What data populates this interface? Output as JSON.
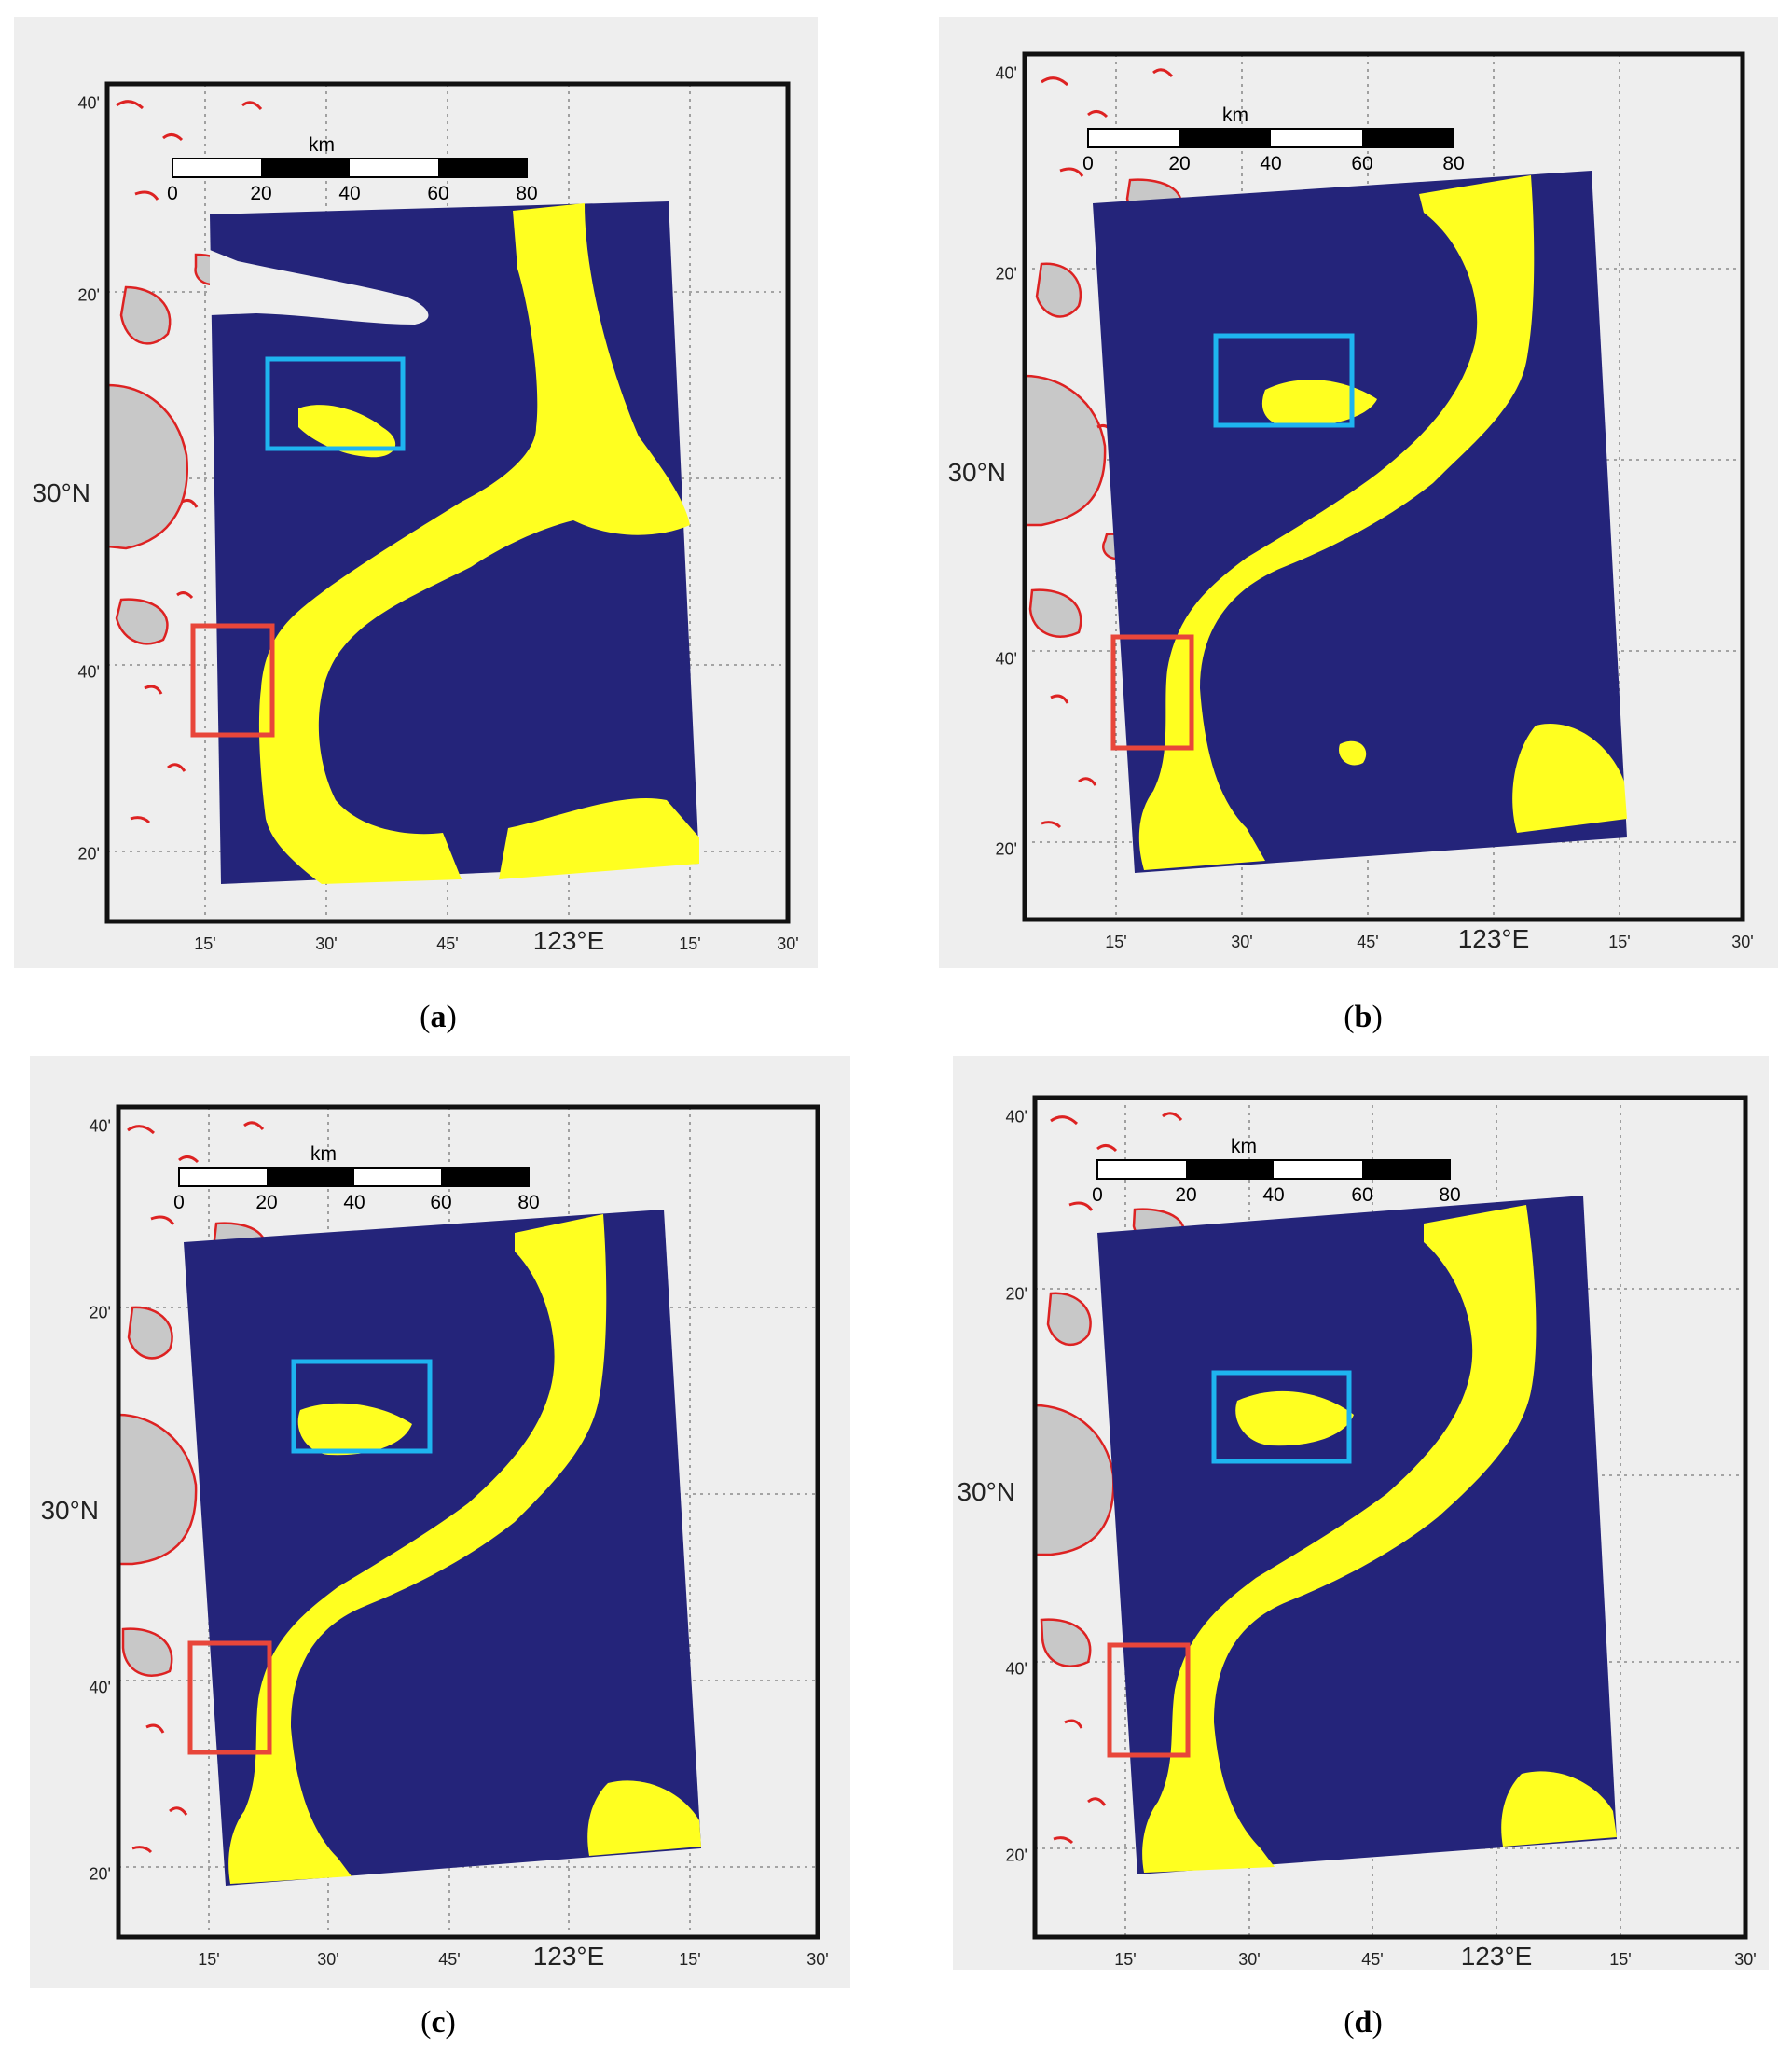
{
  "figure": {
    "panels": [
      {
        "id": "a",
        "caption_letter": "a"
      },
      {
        "id": "b",
        "caption_letter": "b"
      },
      {
        "id": "c",
        "caption_letter": "c"
      },
      {
        "id": "d",
        "caption_letter": "d"
      }
    ],
    "caption_open": "(",
    "caption_close": ")"
  },
  "map_labels": {
    "lat_ticks": [
      "40'",
      "20'",
      "30°N",
      "40'",
      "20'"
    ],
    "lon_ticks": [
      "15'",
      "30'",
      "45'",
      "123°E",
      "15'",
      "30'"
    ],
    "scale_unit": "km",
    "scale_ticks": [
      "0",
      "20",
      "40",
      "60",
      "80"
    ]
  },
  "colors": {
    "sea_class": "#24247a",
    "detected_class": "#ffff20",
    "land": "#c8c8c8",
    "coastline": "#dd2222",
    "box_blue": "#1eb4f0",
    "box_red": "#e8463a",
    "panel_bg": "#eeeeee"
  }
}
